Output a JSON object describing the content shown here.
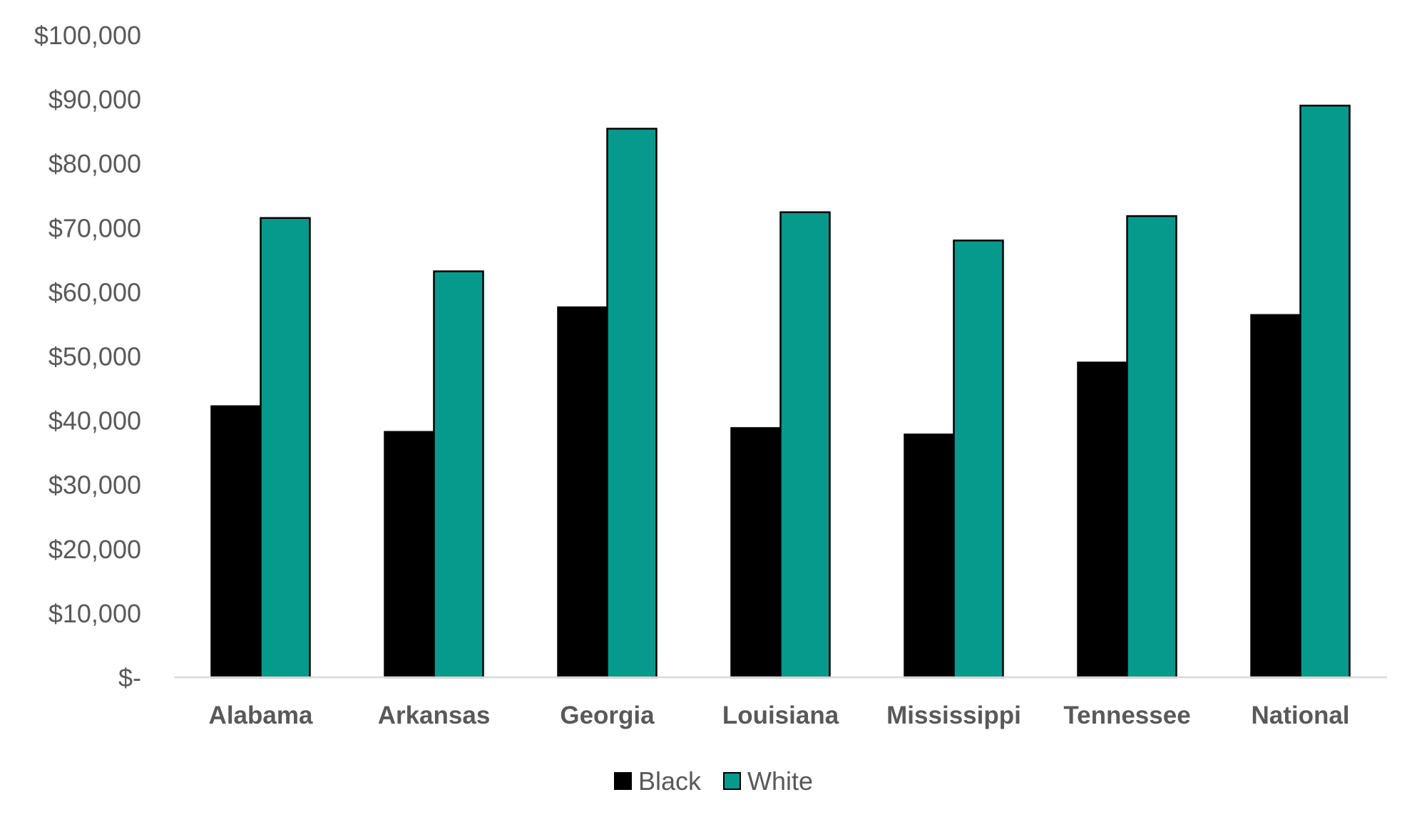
{
  "chart_data": {
    "type": "bar",
    "categories": [
      "Alabama",
      "Arkansas",
      "Georgia",
      "Louisiana",
      "Mississippi",
      "Tennessee",
      "National"
    ],
    "series": [
      {
        "name": "Black",
        "values": [
          42200,
          38200,
          57600,
          38800,
          37800,
          49000,
          56400
        ],
        "color": "#000000"
      },
      {
        "name": "White",
        "values": [
          71500,
          63200,
          85400,
          72400,
          68000,
          71800,
          89000
        ],
        "color": "#069A8C"
      }
    ],
    "ylim": [
      0,
      100000
    ],
    "yticks": [
      0,
      10000,
      20000,
      30000,
      40000,
      50000,
      60000,
      70000,
      80000,
      90000,
      100000
    ],
    "ytick_labels": [
      "$-",
      "$10,000",
      "$20,000",
      "$30,000",
      "$40,000",
      "$50,000",
      "$60,000",
      "$70,000",
      "$80,000",
      "$90,000",
      "$100,000"
    ],
    "title": "",
    "xlabel": "",
    "ylabel": "",
    "grid": false,
    "legend_position": "bottom-center",
    "colors": {
      "axis_line": "#D9D9D9",
      "tick_text": "#595959",
      "bar_border": "#000000"
    }
  }
}
